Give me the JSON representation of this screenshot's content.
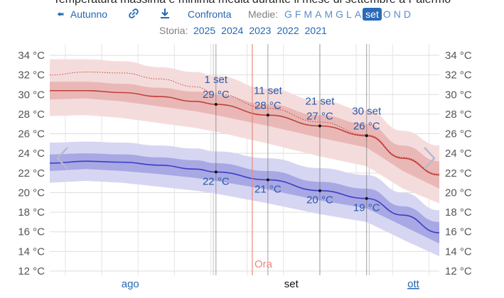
{
  "header": {
    "title": "Temperatura massima e minima media durante il mese di settembre a Palermo",
    "season_label": "Autunno",
    "compare_label": "Confronta",
    "averages_label": "Medie:",
    "months": [
      "G",
      "F",
      "M",
      "A",
      "M",
      "G",
      "L",
      "A",
      "set",
      "O",
      "N",
      "D"
    ],
    "active_month": "set",
    "history_label": "Storia:",
    "years": [
      "2025",
      "2024",
      "2023",
      "2022",
      "2021"
    ]
  },
  "icons": {
    "back": "arrow-left-icon",
    "link": "link-icon",
    "download": "download-icon",
    "prev": "chevron-left-icon",
    "next": "chevron-right-icon"
  },
  "colors": {
    "max_line": "#c0403a",
    "max_band_inner": "#e9b8b6",
    "max_band_outer": "#f5dcdc",
    "min_line": "#3c3cc4",
    "min_band_inner": "#a8a8e4",
    "min_band_outer": "#d6d6f3",
    "now_line": "#e88a80"
  },
  "chart_data": {
    "type": "line",
    "title": "Temperatura massima e minima media durante il mese di settembre a Palermo",
    "x_months": [
      "ago",
      "set",
      "ott"
    ],
    "now_label": "Ora",
    "now_x_day": 8,
    "x_range_days": [
      -31,
      44
    ],
    "y_ticks": [
      "12 °C",
      "14 °C",
      "16 °C",
      "18 °C",
      "20 °C",
      "22 °C",
      "24 °C",
      "26 °C",
      "28 °C",
      "30 °C",
      "32 °C",
      "34 °C"
    ],
    "ylim": [
      12,
      34
    ],
    "x_day": [
      -31,
      -24,
      -17,
      -10,
      -3,
      1,
      11,
      21,
      30,
      37,
      44
    ],
    "series": [
      {
        "name": "max",
        "values": [
          30.4,
          30.4,
          30.2,
          29.8,
          29.3,
          29.0,
          27.9,
          26.8,
          25.8,
          23.5,
          21.8
        ],
        "p25": [
          29.5,
          29.6,
          29.3,
          28.8,
          28.3,
          27.9,
          26.8,
          25.6,
          24.6,
          22.2,
          20.4
        ],
        "p75": [
          31.3,
          31.3,
          31.1,
          30.7,
          30.3,
          30.0,
          29.0,
          27.9,
          27.0,
          24.8,
          23.2
        ],
        "p10": [
          27.8,
          27.9,
          27.6,
          27.1,
          26.6,
          26.2,
          25.0,
          23.7,
          22.7,
          20.4,
          18.9
        ],
        "p90": [
          33.6,
          33.6,
          33.4,
          32.8,
          32.3,
          31.9,
          30.6,
          29.4,
          28.4,
          26.3,
          24.8
        ]
      },
      {
        "name": "max-recent-dotted",
        "values": [
          32.0,
          32.3,
          32.2,
          31.6,
          30.8,
          30.1,
          28.6,
          27.2,
          25.9,
          23.6,
          21.9
        ]
      },
      {
        "name": "min",
        "values": [
          23.0,
          23.2,
          23.1,
          22.8,
          22.4,
          22.1,
          21.3,
          20.2,
          19.4,
          17.7,
          15.9
        ],
        "p25": [
          22.2,
          22.4,
          22.2,
          21.9,
          21.5,
          21.2,
          20.3,
          19.2,
          18.4,
          16.6,
          14.8
        ],
        "p75": [
          23.9,
          24.0,
          23.9,
          23.6,
          23.3,
          23.0,
          22.2,
          21.1,
          20.4,
          18.6,
          17.0
        ],
        "p10": [
          21.0,
          21.2,
          21.0,
          20.6,
          20.2,
          19.9,
          18.9,
          17.8,
          17.0,
          15.2,
          13.5
        ],
        "p90": [
          25.1,
          25.2,
          25.1,
          24.8,
          24.5,
          24.2,
          23.5,
          22.5,
          21.8,
          20.0,
          18.2
        ]
      }
    ],
    "annotations_max": [
      {
        "date": "1 set",
        "value_label": "29 °C",
        "day": 1,
        "value": 29.0
      },
      {
        "date": "11 set",
        "value_label": "28 °C",
        "day": 11,
        "value": 27.9
      },
      {
        "date": "21 set",
        "value_label": "27 °C",
        "day": 21,
        "value": 26.8
      },
      {
        "date": "30 set",
        "value_label": "26 °C",
        "day": 30,
        "value": 25.8
      }
    ],
    "annotations_min": [
      {
        "value_label": "22 °C",
        "day": 1,
        "value": 22.1
      },
      {
        "value_label": "21 °C",
        "day": 11,
        "value": 21.3
      },
      {
        "value_label": "20 °C",
        "day": 21,
        "value": 20.2
      },
      {
        "value_label": "19 °C",
        "day": 30,
        "value": 19.4
      }
    ]
  }
}
